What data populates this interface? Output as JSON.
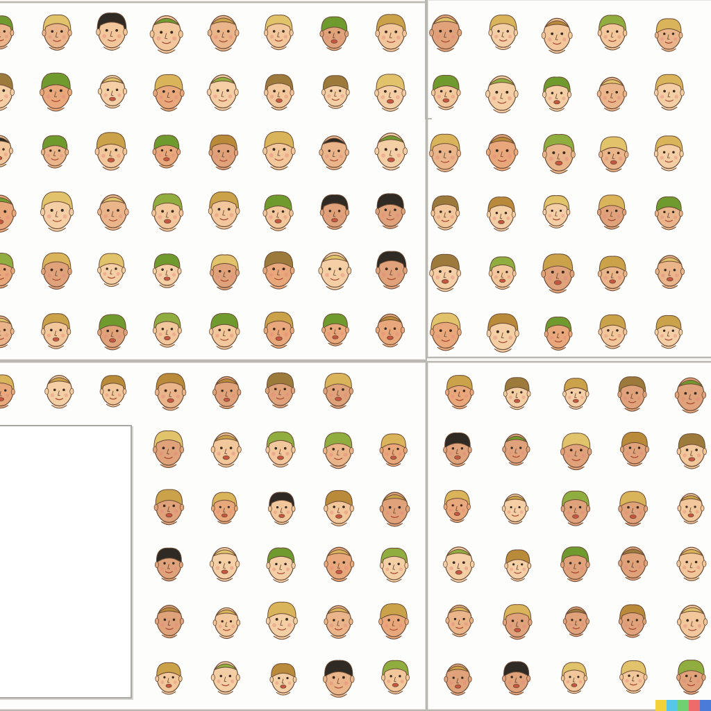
{
  "image": {
    "description_tags": [
      "sketch",
      "cartoon-heads",
      "grid"
    ],
    "palette": {
      "skin": [
        "#f1c79b",
        "#eab58a",
        "#e8a87c",
        "#f4cfa6",
        "#dfa27a"
      ],
      "hair": [
        "#d9b45a",
        "#c9a24a",
        "#8fae3f",
        "#6f9a2e",
        "#2f2a24",
        "#b88a3a",
        "#e0c36a",
        "#9b7a3c"
      ],
      "outline": "#6b4a35",
      "paper": "#fdfdfb",
      "strip": [
        "#f2d13a",
        "#55c6e8",
        "#6fd16f",
        "#ef6b6b",
        "#4b7bd9"
      ]
    }
  },
  "sheets": [
    {
      "id": "sheet-tl",
      "rows": 6,
      "cols": 8
    },
    {
      "id": "sheet-tr",
      "rows": 6,
      "cols": 5
    },
    {
      "id": "sheet-bl-top",
      "rows": 1,
      "cols": 7
    },
    {
      "id": "sheet-bl",
      "rows": 5,
      "cols": 5
    },
    {
      "id": "sheet-br",
      "rows": 6,
      "cols": 5
    }
  ]
}
